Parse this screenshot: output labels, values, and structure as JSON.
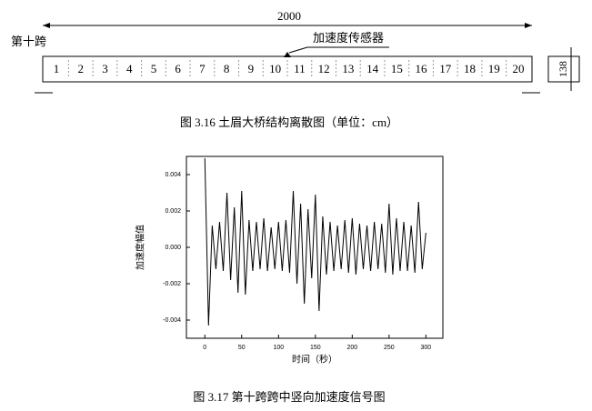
{
  "diagram": {
    "span_label": "2000",
    "span_name": "第十跨",
    "sensor_label": "加速度传感器",
    "nodes": [
      "1",
      "2",
      "3",
      "4",
      "5",
      "6",
      "7",
      "8",
      "9",
      "10",
      "11",
      "12",
      "13",
      "14",
      "15",
      "16",
      "17",
      "18",
      "19",
      "20"
    ],
    "height_label": "138",
    "caption": "图 3.16  土眉大桥结构离散图（单位：cm）"
  },
  "chart_data": {
    "type": "line",
    "color": "#000000",
    "x": [
      0,
      5,
      10,
      15,
      20,
      25,
      30,
      35,
      40,
      45,
      50,
      55,
      60,
      65,
      70,
      75,
      80,
      85,
      90,
      95,
      100,
      105,
      110,
      115,
      120,
      125,
      130,
      135,
      140,
      145,
      150,
      155,
      160,
      165,
      170,
      175,
      180,
      185,
      190,
      195,
      200,
      205,
      210,
      215,
      220,
      225,
      230,
      235,
      240,
      245,
      250,
      255,
      260,
      265,
      270,
      275,
      280,
      285,
      290,
      295,
      300
    ],
    "values": [
      0.0049,
      -0.0043,
      0.0012,
      -0.0012,
      0.0014,
      -0.0013,
      0.003,
      -0.0018,
      0.0022,
      -0.0025,
      0.0031,
      -0.0026,
      0.0015,
      -0.0013,
      0.0014,
      -0.0012,
      0.0016,
      -0.0013,
      0.0011,
      -0.0012,
      0.0014,
      -0.0013,
      0.0015,
      -0.0014,
      0.0031,
      -0.002,
      0.0024,
      -0.0031,
      0.0021,
      -0.0017,
      0.0029,
      -0.0035,
      0.0017,
      -0.0015,
      0.0014,
      -0.0013,
      0.0012,
      -0.0012,
      0.0015,
      -0.0014,
      0.0016,
      -0.0015,
      0.0013,
      -0.0012,
      0.0012,
      -0.0013,
      0.0014,
      -0.0012,
      0.0013,
      -0.0014,
      0.0024,
      -0.0015,
      0.0016,
      -0.0013,
      0.0014,
      -0.0013,
      0.0012,
      -0.0014,
      0.0025,
      -0.0012,
      0.0008
    ],
    "xlim": [
      -25,
      323
    ],
    "xticks": [
      0,
      50,
      100,
      150,
      200,
      250,
      300
    ],
    "ylim": [
      -0.005,
      0.005
    ],
    "yticks": [
      -0.004,
      -0.002,
      {
        "value": 0,
        "label": "0.000"
      },
      0.002,
      0.004
    ],
    "xlabel": "时间（秒）",
    "ylabel": "加速度幅值",
    "caption": "图 3.17  第十跨跨中竖向加速度信号图"
  }
}
